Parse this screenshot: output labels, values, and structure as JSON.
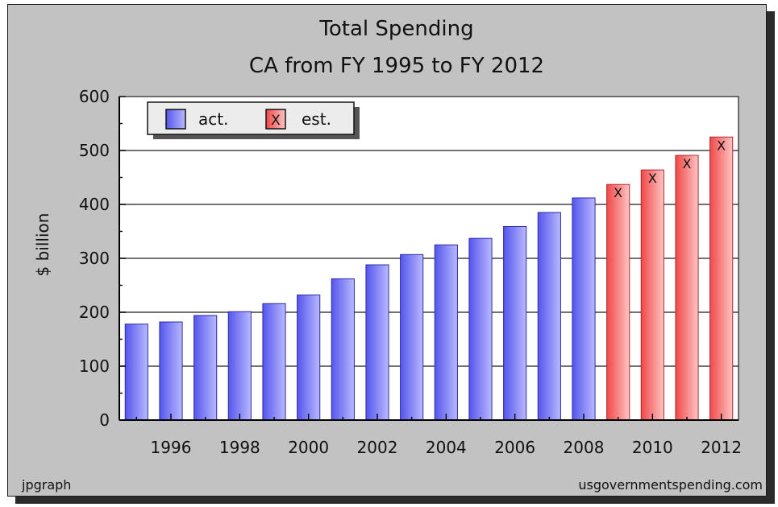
{
  "chart_data": {
    "type": "bar",
    "title": "Total Spending",
    "subtitle": "CA from FY 1995 to FY 2012",
    "xlabel": "",
    "ylabel": "$ billion",
    "ylim": [
      0,
      600
    ],
    "yticks": [
      0,
      100,
      200,
      300,
      400,
      500,
      600
    ],
    "xticks": [
      "1996",
      "1998",
      "2000",
      "2002",
      "2004",
      "2006",
      "2008",
      "2010",
      "2012"
    ],
    "grid": true,
    "legend_position": "top-left",
    "categories": [
      "1995",
      "1996",
      "1997",
      "1998",
      "1999",
      "2000",
      "2001",
      "2002",
      "2003",
      "2004",
      "2005",
      "2006",
      "2007",
      "2008",
      "2009",
      "2010",
      "2011",
      "2012"
    ],
    "series": [
      {
        "name": "act.",
        "color": "#6666ff",
        "values": [
          178,
          182,
          194,
          201,
          216,
          232,
          262,
          288,
          307,
          325,
          337,
          359,
          385,
          412,
          null,
          null,
          null,
          null
        ]
      },
      {
        "name": "est.",
        "color": "#ff5a5a",
        "marker": "X",
        "values": [
          null,
          null,
          null,
          null,
          null,
          null,
          null,
          null,
          null,
          null,
          null,
          null,
          null,
          null,
          437,
          464,
          491,
          525
        ]
      }
    ]
  },
  "footer": {
    "left": "jpgraph",
    "right": "usgovernmentspending.com"
  }
}
